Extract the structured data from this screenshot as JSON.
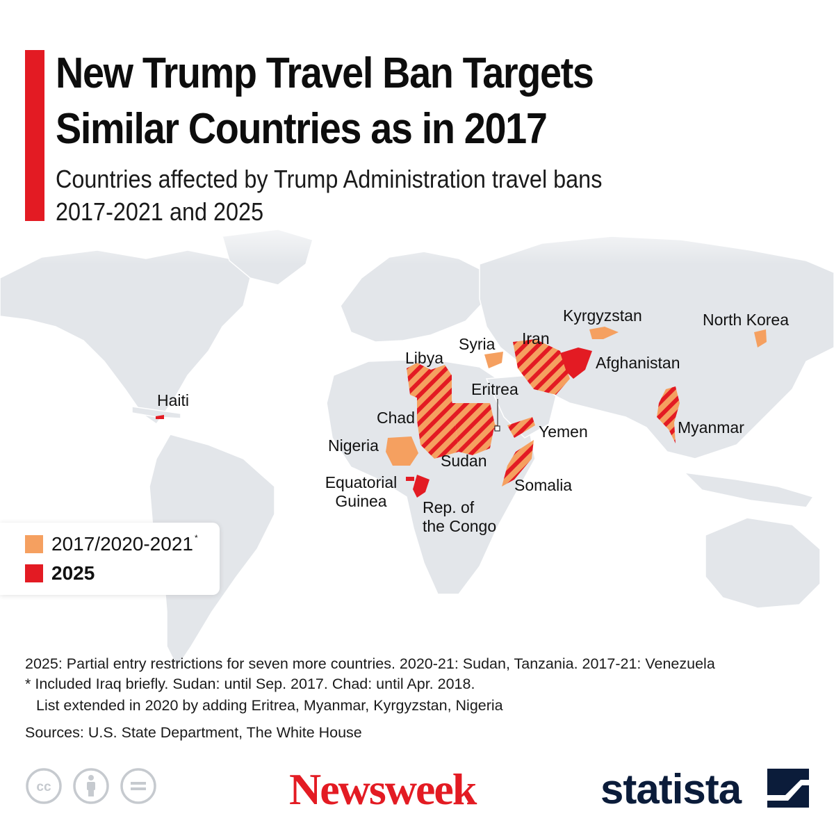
{
  "header": {
    "title_line1": "New Trump Travel Ban Targets",
    "title_line2": "Similar Countries as in 2017",
    "subtitle_line1": "Countries affected by Trump Administration travel bans",
    "subtitle_line2": "2017-2021 and 2025"
  },
  "colors": {
    "accent": "#e31b23",
    "ban_2017": "#f5a060",
    "ban_2025": "#e31b23",
    "land": "#e3e6ea",
    "background": "#ffffff",
    "statista_navy": "#0b1c3a"
  },
  "countries": [
    {
      "name": "Haiti",
      "category": "2025"
    },
    {
      "name": "Libya",
      "category": "both"
    },
    {
      "name": "Syria",
      "category": "2017/2020-2021"
    },
    {
      "name": "Iran",
      "category": "both"
    },
    {
      "name": "Kyrgyzstan",
      "category": "2017/2020-2021"
    },
    {
      "name": "North Korea",
      "category": "2017/2020-2021"
    },
    {
      "name": "Afghanistan",
      "category": "2025"
    },
    {
      "name": "Eritrea",
      "category": "both"
    },
    {
      "name": "Chad",
      "category": "both"
    },
    {
      "name": "Nigeria",
      "category": "2017/2020-2021"
    },
    {
      "name": "Sudan",
      "category": "both"
    },
    {
      "name": "Yemen",
      "category": "both"
    },
    {
      "name": "Myanmar",
      "category": "both"
    },
    {
      "name": "Somalia",
      "category": "both"
    },
    {
      "name": "Equatorial Guinea",
      "category": "2025"
    },
    {
      "name": "Rep. of the Congo",
      "category": "2025"
    }
  ],
  "labels": {
    "haiti": "Haiti",
    "libya": "Libya",
    "syria": "Syria",
    "iran": "Iran",
    "kyrgyzstan": "Kyrgyzstan",
    "north_korea": "North Korea",
    "afghanistan": "Afghanistan",
    "eritrea": "Eritrea",
    "chad": "Chad",
    "nigeria": "Nigeria",
    "sudan": "Sudan",
    "yemen": "Yemen",
    "myanmar": "Myanmar",
    "somalia": "Somalia",
    "eq_guinea_1": "Equatorial",
    "eq_guinea_2": "Guinea",
    "congo_1": "Rep. of",
    "congo_2": "the Congo"
  },
  "legend": {
    "item1_label": "2017/2020-2021",
    "item1_marker": "*",
    "item2_label": "2025"
  },
  "footnotes": {
    "line1": "2025: Partial entry restrictions for seven more countries. 2020-21: Sudan, Tanzania. 2017-21: Venezuela",
    "line2": "* Included Iraq briefly. Sudan: until Sep. 2017. Chad: until Apr. 2018.",
    "line3": "List extended in 2020 by adding Eritrea, Myanmar, Kyrgyzstan, Nigeria",
    "sources": "Sources: U.S. State Department, The White House"
  },
  "branding": {
    "newsweek": "Newsweek",
    "statista": "statista",
    "license_icons": [
      "cc-icon",
      "attribution-icon",
      "no-derivatives-icon"
    ]
  }
}
